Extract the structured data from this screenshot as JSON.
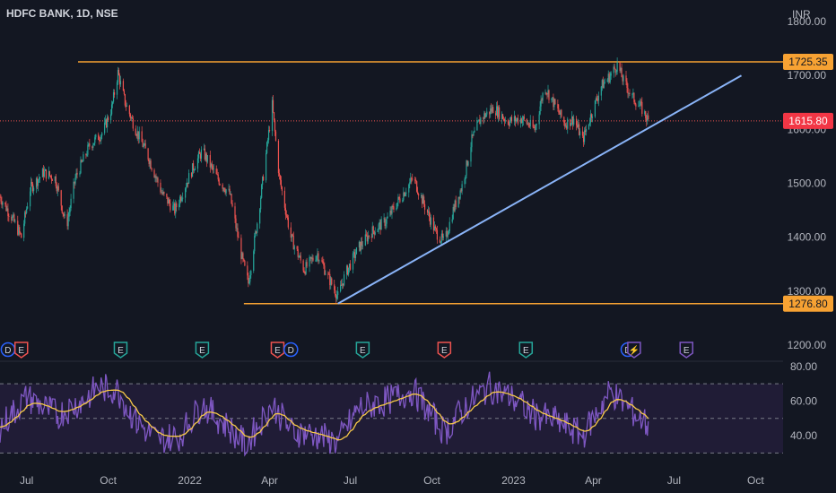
{
  "symbol": {
    "name": "HDFC BANK",
    "interval": "1D",
    "exchange": "NSE"
  },
  "currency": "INR",
  "colors": {
    "background": "#131722",
    "up": "#26a69a",
    "down": "#ef5350",
    "level_line": "#f7a233",
    "trendline": "#8ab4f8",
    "price_label_bg": "#f23645",
    "rsi_line": "#7e57c2",
    "rsi_ma": "#f7c948",
    "rsi_band": "#2a1f45",
    "axis_text": "#b2b5be"
  },
  "chart_data": {
    "type": "candlestick",
    "x_ticks": [
      "Jul",
      "Oct",
      "2022",
      "Apr",
      "Jul",
      "Oct",
      "2023",
      "Apr",
      "Jul",
      "Oct"
    ],
    "x_tick_dates": [
      "2021-07-01",
      "2021-10-01",
      "2022-01-01",
      "2022-04-01",
      "2022-07-01",
      "2022-10-01",
      "2023-01-01",
      "2023-04-01",
      "2023-07-01",
      "2023-10-01"
    ],
    "y_ticks": [
      1200,
      1300,
      1400,
      1500,
      1600,
      1700,
      1800
    ],
    "y_range": [
      1170,
      1840
    ],
    "last_price": "1615.80",
    "levels": [
      {
        "label": "1725.35",
        "value": 1725.35,
        "from": "2021-08-28"
      },
      {
        "label": "1276.80",
        "value": 1276.8,
        "from": "2022-03-03"
      }
    ],
    "current_price_line": 1615.8,
    "trendline": {
      "start": [
        "2022-06-17",
        1276.8
      ],
      "end": [
        "2023-09-15",
        1700
      ]
    },
    "price_path": [
      [
        "2021-06-01",
        1475
      ],
      [
        "2021-06-15",
        1435
      ],
      [
        "2021-06-25",
        1400
      ],
      [
        "2021-07-05",
        1490
      ],
      [
        "2021-07-20",
        1520
      ],
      [
        "2021-08-02",
        1510
      ],
      [
        "2021-08-15",
        1420
      ],
      [
        "2021-08-25",
        1510
      ],
      [
        "2021-09-10",
        1570
      ],
      [
        "2021-09-25",
        1595
      ],
      [
        "2021-10-05",
        1640
      ],
      [
        "2021-10-12",
        1705
      ],
      [
        "2021-10-20",
        1650
      ],
      [
        "2021-11-01",
        1600
      ],
      [
        "2021-11-15",
        1550
      ],
      [
        "2021-12-01",
        1480
      ],
      [
        "2021-12-15",
        1450
      ],
      [
        "2022-01-05",
        1530
      ],
      [
        "2022-01-15",
        1560
      ],
      [
        "2022-02-01",
        1510
      ],
      [
        "2022-02-15",
        1480
      ],
      [
        "2022-03-01",
        1360
      ],
      [
        "2022-03-08",
        1315
      ],
      [
        "2022-03-20",
        1450
      ],
      [
        "2022-04-04",
        1645
      ],
      [
        "2022-04-12",
        1510
      ],
      [
        "2022-04-25",
        1400
      ],
      [
        "2022-05-10",
        1340
      ],
      [
        "2022-05-25",
        1370
      ],
      [
        "2022-06-05",
        1330
      ],
      [
        "2022-06-17",
        1290
      ],
      [
        "2022-06-25",
        1330
      ],
      [
        "2022-07-10",
        1380
      ],
      [
        "2022-07-25",
        1410
      ],
      [
        "2022-08-10",
        1430
      ],
      [
        "2022-08-25",
        1470
      ],
      [
        "2022-09-10",
        1510
      ],
      [
        "2022-09-25",
        1450
      ],
      [
        "2022-10-05",
        1410
      ],
      [
        "2022-10-15",
        1390
      ],
      [
        "2022-10-25",
        1450
      ],
      [
        "2022-11-05",
        1500
      ],
      [
        "2022-11-15",
        1580
      ],
      [
        "2022-11-25",
        1620
      ],
      [
        "2022-12-10",
        1640
      ],
      [
        "2022-12-25",
        1615
      ],
      [
        "2023-01-10",
        1620
      ],
      [
        "2023-01-25",
        1600
      ],
      [
        "2023-02-05",
        1680
      ],
      [
        "2023-02-15",
        1650
      ],
      [
        "2023-02-28",
        1610
      ],
      [
        "2023-03-10",
        1620
      ],
      [
        "2023-03-20",
        1580
      ],
      [
        "2023-03-28",
        1620
      ],
      [
        "2023-04-10",
        1680
      ],
      [
        "2023-04-20",
        1700
      ],
      [
        "2023-04-28",
        1720
      ],
      [
        "2023-05-05",
        1690
      ],
      [
        "2023-05-15",
        1660
      ],
      [
        "2023-05-25",
        1640
      ],
      [
        "2023-06-02",
        1615.8
      ]
    ],
    "event_markers": [
      {
        "letter": "D",
        "date": "2021-06-10",
        "color": "#2962ff"
      },
      {
        "letter": "E",
        "date": "2021-06-25",
        "color": "#ef5350"
      },
      {
        "letter": "E",
        "date": "2021-10-15",
        "color": "#26a69a"
      },
      {
        "letter": "E",
        "date": "2022-01-15",
        "color": "#26a69a"
      },
      {
        "letter": "E",
        "date": "2022-04-10",
        "color": "#ef5350"
      },
      {
        "letter": "D",
        "date": "2022-04-25",
        "color": "#2962ff"
      },
      {
        "letter": "E",
        "date": "2022-07-15",
        "color": "#26a69a"
      },
      {
        "letter": "E",
        "date": "2022-10-15",
        "color": "#ef5350"
      },
      {
        "letter": "E",
        "date": "2023-01-15",
        "color": "#26a69a"
      },
      {
        "letter": "D",
        "date": "2023-05-10",
        "color": "#2962ff"
      },
      {
        "letter": "⚡",
        "date": "2023-05-17",
        "color": "#7e57c2"
      },
      {
        "letter": "E",
        "date": "2023-07-15",
        "color": "#7e57c2"
      }
    ],
    "rsi": {
      "y_ticks": [
        "80.00",
        "60.00",
        "40.00"
      ],
      "y_range": [
        24,
        82
      ],
      "band": [
        30,
        70
      ],
      "mid": 50,
      "path": [
        [
          "2021-06-01",
          45
        ],
        [
          "2021-07-01",
          62
        ],
        [
          "2021-08-05",
          52
        ],
        [
          "2021-09-01",
          60
        ],
        [
          "2021-09-20",
          68
        ],
        [
          "2021-10-12",
          66
        ],
        [
          "2021-11-01",
          48
        ],
        [
          "2021-11-25",
          38
        ],
        [
          "2021-12-20",
          40
        ],
        [
          "2022-01-15",
          58
        ],
        [
          "2022-02-15",
          44
        ],
        [
          "2022-03-05",
          35
        ],
        [
          "2022-04-04",
          58
        ],
        [
          "2022-04-25",
          43
        ],
        [
          "2022-05-25",
          40
        ],
        [
          "2022-06-17",
          36
        ],
        [
          "2022-07-10",
          56
        ],
        [
          "2022-08-10",
          60
        ],
        [
          "2022-09-10",
          66
        ],
        [
          "2022-10-15",
          42
        ],
        [
          "2022-11-10",
          58
        ],
        [
          "2022-12-05",
          68
        ],
        [
          "2023-01-05",
          60
        ],
        [
          "2023-01-25",
          52
        ],
        [
          "2023-02-20",
          48
        ],
        [
          "2023-03-20",
          40
        ],
        [
          "2023-04-20",
          66
        ],
        [
          "2023-05-10",
          56
        ],
        [
          "2023-06-02",
          46
        ]
      ]
    }
  }
}
